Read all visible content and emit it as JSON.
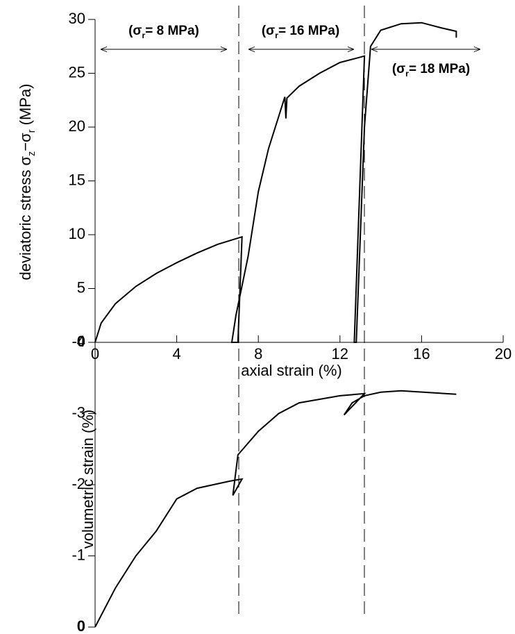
{
  "chart_data": [
    {
      "type": "line",
      "ylabel": [
        "deviatoric stress σ",
        "z",
        "−σ",
        "r",
        " (MPa)"
      ],
      "xlabel": "axial strain (%)",
      "xlim": [
        0,
        20
      ],
      "xticks": [
        0,
        4,
        8,
        12,
        16,
        20
      ],
      "ylim": [
        0,
        30
      ],
      "yticks": [
        0,
        5,
        10,
        15,
        20,
        25,
        30
      ],
      "annotations": [
        [
          "(σ",
          "r",
          "= 8 MPa)"
        ],
        [
          "(σ",
          "r",
          "= 16 MPa)"
        ],
        [
          "(σ",
          "r",
          "= 18 MPa)"
        ]
      ],
      "series": [
        {
          "color": "#000000",
          "x": [
            0,
            0.3,
            1,
            2,
            3,
            4,
            5,
            6,
            7.2,
            7.0,
            6.7,
            6.9,
            7.5,
            8,
            8.5,
            9,
            9.3,
            9.35,
            9.4,
            10,
            11,
            12,
            13,
            13.2,
            12.7,
            12.8,
            13.2,
            13.5,
            14,
            15,
            16,
            17,
            17.7,
            17.7
          ],
          "values": [
            0,
            1.8,
            3.6,
            5.2,
            6.4,
            7.4,
            8.3,
            9.1,
            9.8,
            0,
            0,
            2.5,
            8,
            14,
            18,
            21,
            22.8,
            20.8,
            22.7,
            23.8,
            25,
            26,
            26.5,
            26.6,
            0,
            0,
            20,
            27.5,
            29,
            29.6,
            29.7,
            29.2,
            28.9,
            28.3
          ]
        }
      ]
    },
    {
      "type": "line",
      "ylabel": "volumetric strain (%)",
      "ylim": [
        0,
        -4
      ],
      "yticks": [
        0,
        -1,
        -2,
        -3,
        -4
      ],
      "series": [
        {
          "color": "#000000",
          "x": [
            0,
            1,
            2,
            3,
            4,
            5,
            6.6,
            7.2,
            6.75,
            7.0,
            8,
            9,
            10,
            11,
            12,
            13.2,
            12.2,
            12.6,
            13.2,
            14,
            15,
            17.7
          ],
          "values": [
            0,
            -0.55,
            -1.0,
            -1.35,
            -1.8,
            -1.95,
            -2.05,
            -2.08,
            -1.85,
            -2.42,
            -2.75,
            -3.0,
            -3.15,
            -3.2,
            -3.25,
            -3.28,
            -2.98,
            -3.15,
            -3.25,
            -3.3,
            -3.32,
            -3.27
          ]
        }
      ]
    }
  ]
}
